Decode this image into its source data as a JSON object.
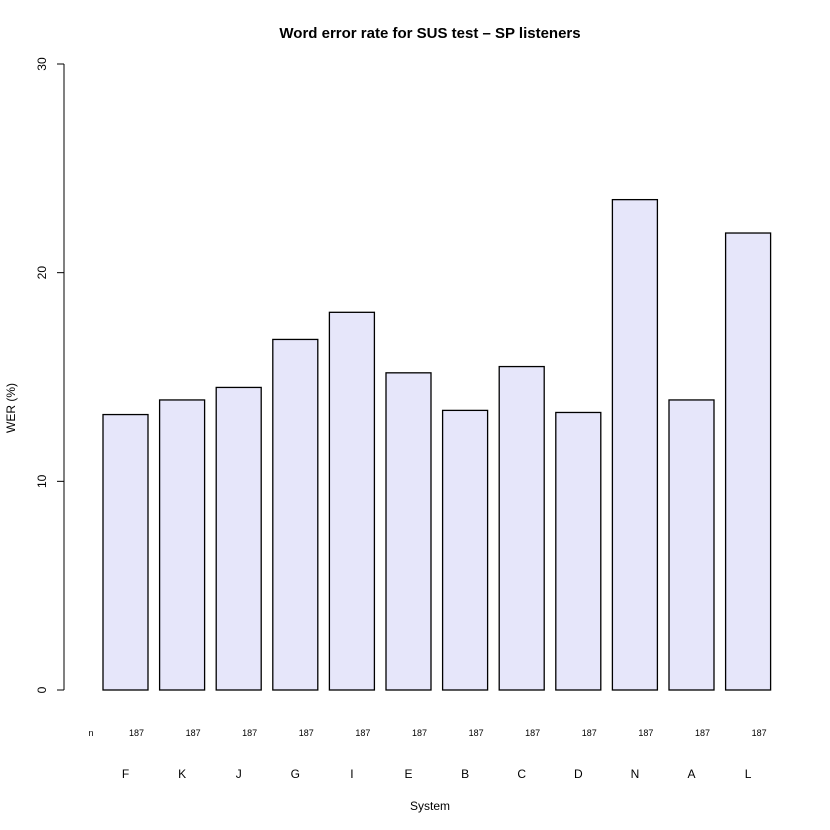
{
  "chart_data": {
    "type": "bar",
    "title": "Word error rate for SUS test – SP listeners",
    "xlabel": "System",
    "ylabel": "WER (%)",
    "ylim": [
      0,
      30
    ],
    "yticks": [
      0,
      10,
      20,
      30
    ],
    "categories": [
      "F",
      "K",
      "J",
      "G",
      "I",
      "E",
      "B",
      "C",
      "D",
      "N",
      "A",
      "L"
    ],
    "values": [
      13.2,
      13.9,
      14.5,
      16.8,
      18.1,
      15.2,
      13.4,
      15.5,
      13.3,
      23.5,
      13.9,
      21.9
    ],
    "count_label": "n",
    "counts": [
      187,
      187,
      187,
      187,
      187,
      187,
      187,
      187,
      187,
      187,
      187,
      187
    ],
    "bar_fill": "#E6E6FA",
    "bar_stroke": "#000000",
    "grid": false,
    "legend": "none"
  }
}
